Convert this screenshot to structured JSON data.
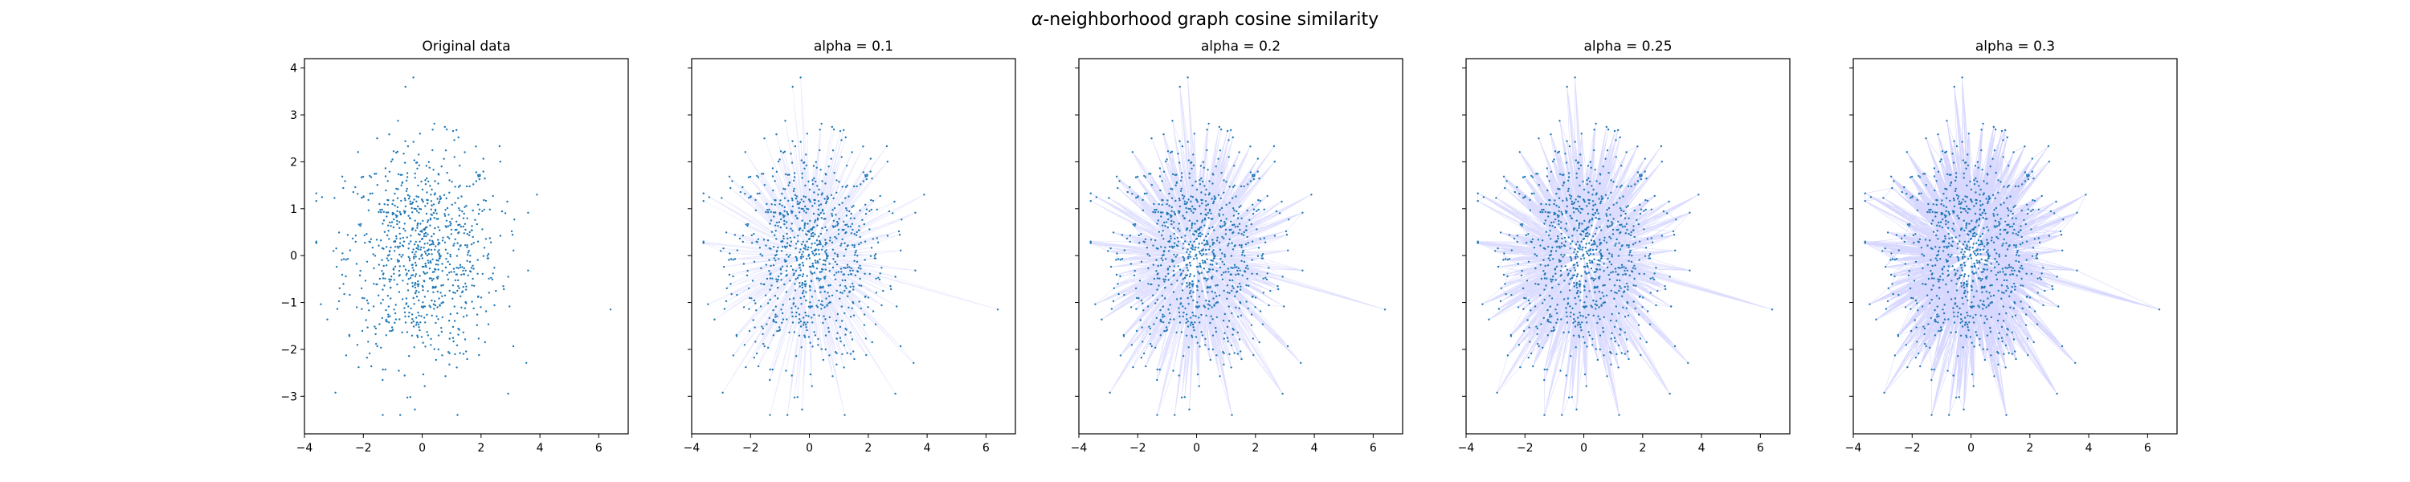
{
  "figure": {
    "suptitle_prefix": "α",
    "suptitle_rest": "-neighborhood graph cosine similarity"
  },
  "style": {
    "point_color": "#1f77b4",
    "edge_color": "#0000ff",
    "node_color": "#1f77b4"
  },
  "chart_data": [
    {
      "type": "scatter",
      "title": "Original data",
      "alpha": null,
      "xlim": [
        -4,
        7
      ],
      "ylim": [
        -3.8,
        4.2
      ],
      "xticks": [
        -4,
        -2,
        0,
        2,
        4,
        6
      ],
      "yticks": [
        -3,
        -2,
        -1,
        0,
        1,
        2,
        3,
        4
      ],
      "n_points": 900,
      "x_mean": 0.0,
      "x_std": 1.3,
      "y_mean": 0.0,
      "y_std": 1.15,
      "outliers": [
        [
          6.4,
          -1.15
        ],
        [
          3.9,
          1.3
        ],
        [
          -0.3,
          3.8
        ],
        [
          1.2,
          -3.4
        ],
        [
          -3.6,
          0.3
        ]
      ]
    },
    {
      "type": "scatter",
      "title": "alpha = 0.1",
      "alpha": 0.1,
      "graph": "alpha-neighborhood cosine similarity",
      "xlim": [
        -4,
        7
      ],
      "ylim": [
        -3.8,
        4.2
      ],
      "xticks": [
        -4,
        -2,
        0,
        2,
        4,
        6
      ]
    },
    {
      "type": "scatter",
      "title": "alpha = 0.2",
      "alpha": 0.2,
      "graph": "alpha-neighborhood cosine similarity",
      "xlim": [
        -4,
        7
      ],
      "ylim": [
        -3.8,
        4.2
      ],
      "xticks": [
        -4,
        -2,
        0,
        2,
        4,
        6
      ]
    },
    {
      "type": "scatter",
      "title": "alpha = 0.25",
      "alpha": 0.25,
      "graph": "alpha-neighborhood cosine similarity",
      "xlim": [
        -4,
        7
      ],
      "ylim": [
        -3.8,
        4.2
      ],
      "xticks": [
        -4,
        -2,
        0,
        2,
        4,
        6
      ]
    },
    {
      "type": "scatter",
      "title": "alpha = 0.3",
      "alpha": 0.3,
      "graph": "alpha-neighborhood cosine similarity",
      "xlim": [
        -4,
        7
      ],
      "ylim": [
        -3.8,
        4.2
      ],
      "xticks": [
        -4,
        -2,
        0,
        2,
        4,
        6
      ]
    }
  ]
}
